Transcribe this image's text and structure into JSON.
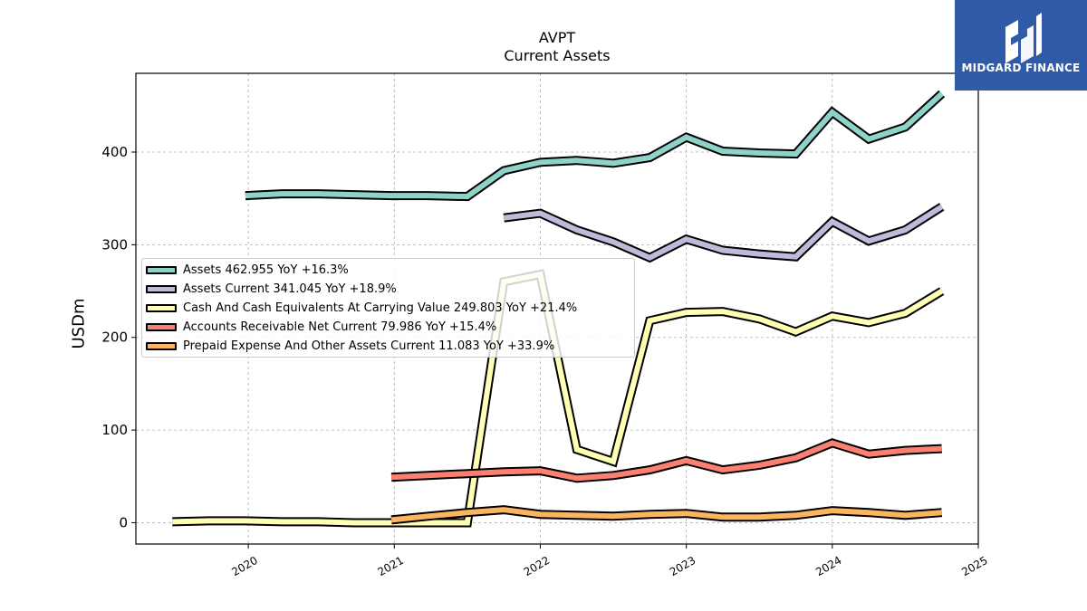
{
  "chart_data": {
    "type": "line",
    "title": "AVPT",
    "subtitle": "Current  Assets",
    "ylabel": "USDm",
    "xlabel": "",
    "xlim": [
      2019.23,
      2025.0
    ],
    "ylim": [
      -23,
      485
    ],
    "x_ticks": [
      2020,
      2021,
      2022,
      2023,
      2024,
      2025
    ],
    "x_tick_labels": [
      "2020",
      "2021",
      "2022",
      "2023",
      "2024",
      "2025"
    ],
    "y_ticks": [
      0,
      100,
      200,
      300,
      400
    ],
    "y_tick_labels": [
      "0",
      "100",
      "200",
      "300",
      "400"
    ],
    "grid": true,
    "legend_position": "center-left",
    "series": [
      {
        "name": "Assets",
        "legend_label": "Assets  462.955 YoY +16.3%",
        "color": "#8dd3c7",
        "points": [
          [
            2019.98,
            353
          ],
          [
            2020.23,
            355
          ],
          [
            2020.48,
            355
          ],
          [
            2020.73,
            354
          ],
          [
            2020.98,
            353
          ],
          [
            2021.23,
            353
          ],
          [
            2021.5,
            352
          ],
          [
            2021.75,
            380
          ],
          [
            2022.0,
            389
          ],
          [
            2022.25,
            391
          ],
          [
            2022.5,
            388
          ],
          [
            2022.75,
            394
          ],
          [
            2023.0,
            416
          ],
          [
            2023.25,
            401
          ],
          [
            2023.5,
            399
          ],
          [
            2023.75,
            398
          ],
          [
            2024.0,
            443
          ],
          [
            2024.25,
            414
          ],
          [
            2024.5,
            427
          ],
          [
            2024.75,
            463
          ]
        ]
      },
      {
        "name": "Assets Current",
        "legend_label": "Assets Current  341.045 YoY +18.9%",
        "color": "#bebada",
        "points": [
          [
            2021.75,
            329
          ],
          [
            2022.0,
            334
          ],
          [
            2022.25,
            316
          ],
          [
            2022.5,
            303
          ],
          [
            2022.75,
            286
          ],
          [
            2023.0,
            306
          ],
          [
            2023.25,
            294
          ],
          [
            2023.5,
            290
          ],
          [
            2023.75,
            287
          ],
          [
            2024.0,
            325
          ],
          [
            2024.25,
            304
          ],
          [
            2024.5,
            316
          ],
          [
            2024.75,
            341
          ]
        ]
      },
      {
        "name": "Cash And Cash Equivalents At Carrying Value",
        "legend_label": "Cash And Cash Equivalents At Carrying Value  249.803 YoY +21.4%",
        "color": "#ffffb3",
        "points": [
          [
            2019.48,
            1
          ],
          [
            2019.73,
            2
          ],
          [
            2019.98,
            2
          ],
          [
            2020.23,
            1
          ],
          [
            2020.48,
            1
          ],
          [
            2020.73,
            0
          ],
          [
            2020.98,
            0
          ],
          [
            2021.23,
            0
          ],
          [
            2021.5,
            0
          ],
          [
            2021.75,
            260
          ],
          [
            2022.0,
            268
          ],
          [
            2022.25,
            79
          ],
          [
            2022.5,
            66
          ],
          [
            2022.75,
            218
          ],
          [
            2023.0,
            227
          ],
          [
            2023.25,
            228
          ],
          [
            2023.5,
            220
          ],
          [
            2023.75,
            206
          ],
          [
            2024.0,
            223
          ],
          [
            2024.25,
            216
          ],
          [
            2024.5,
            226
          ],
          [
            2024.75,
            250
          ]
        ]
      },
      {
        "name": "Accounts Receivable Net Current",
        "legend_label": "Accounts Receivable Net Current  79.986 YoY +15.4%",
        "color": "#fb8072",
        "points": [
          [
            2020.98,
            49
          ],
          [
            2021.23,
            51
          ],
          [
            2021.5,
            53
          ],
          [
            2021.75,
            55
          ],
          [
            2022.0,
            56
          ],
          [
            2022.25,
            48
          ],
          [
            2022.5,
            51
          ],
          [
            2022.75,
            57
          ],
          [
            2023.0,
            67
          ],
          [
            2023.25,
            57
          ],
          [
            2023.5,
            62
          ],
          [
            2023.75,
            70
          ],
          [
            2024.0,
            86
          ],
          [
            2024.25,
            74
          ],
          [
            2024.5,
            78
          ],
          [
            2024.75,
            80
          ]
        ]
      },
      {
        "name": "Prepaid Expense And Other Assets Current",
        "legend_label": "Prepaid Expense And Other Assets Current  11.083 YoY +33.9%",
        "color": "#fdb462",
        "points": [
          [
            2020.98,
            3
          ],
          [
            2021.23,
            7
          ],
          [
            2021.5,
            11
          ],
          [
            2021.75,
            14
          ],
          [
            2022.0,
            9
          ],
          [
            2022.25,
            8
          ],
          [
            2022.5,
            7
          ],
          [
            2022.75,
            9
          ],
          [
            2023.0,
            10
          ],
          [
            2023.25,
            6
          ],
          [
            2023.5,
            6
          ],
          [
            2023.75,
            8
          ],
          [
            2024.0,
            13
          ],
          [
            2024.25,
            11
          ],
          [
            2024.5,
            8
          ],
          [
            2024.75,
            11
          ]
        ]
      }
    ]
  },
  "logo": {
    "name": "MIDGARD FINANCE",
    "bg_color": "#2f5aa8"
  }
}
